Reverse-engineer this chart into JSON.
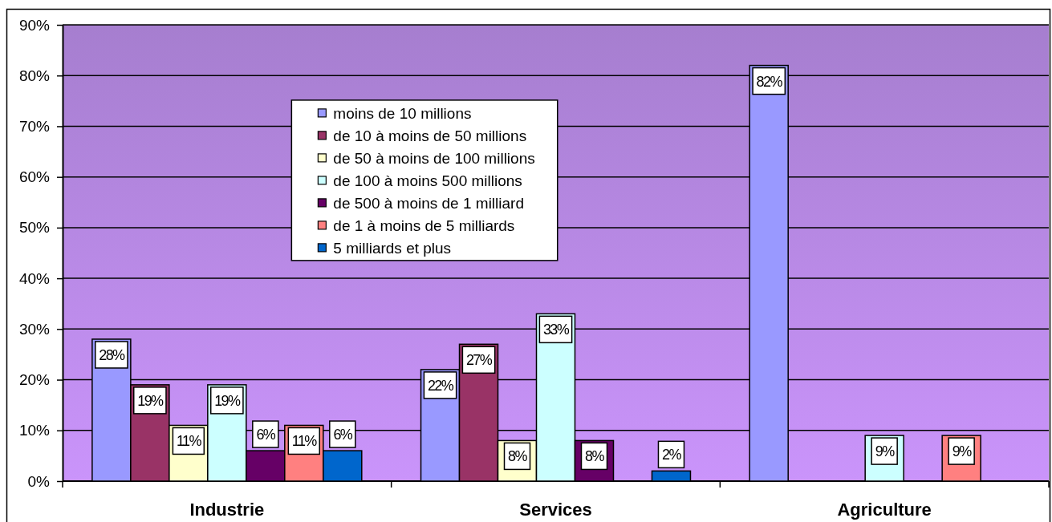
{
  "chart_data": {
    "type": "bar",
    "categories": [
      "Industrie",
      "Services",
      "Agriculture"
    ],
    "series": [
      {
        "name": "moins de 10 millions",
        "color": "#9999ff",
        "values": [
          28,
          22,
          82
        ],
        "value_labels": [
          "28%",
          "22%",
          "82%"
        ]
      },
      {
        "name": "de 10 à moins de 50 millions",
        "color": "#993366",
        "values": [
          19,
          27,
          null
        ],
        "value_labels": [
          "19%",
          "27%",
          null
        ]
      },
      {
        "name": "de 50 à moins de 100 millions",
        "color": "#ffffcc",
        "values": [
          11,
          8,
          null
        ],
        "value_labels": [
          "11%",
          "8%",
          null
        ]
      },
      {
        "name": "de 100 à moins 500 millions",
        "color": "#ccffff",
        "values": [
          19,
          33,
          9
        ],
        "value_labels": [
          "19%",
          "33%",
          "9%"
        ]
      },
      {
        "name": "de 500 à moins de 1 milliard",
        "color": "#660066",
        "values": [
          6,
          8,
          null
        ],
        "value_labels": [
          "6%",
          "8%",
          null
        ]
      },
      {
        "name": "de 1 à moins de 5 milliards",
        "color": "#ff8080",
        "values": [
          11,
          null,
          9
        ],
        "value_labels": [
          "11%",
          null,
          "9%"
        ]
      },
      {
        "name": "5 milliards et plus",
        "color": "#0066cc",
        "values": [
          6,
          2,
          null
        ],
        "value_labels": [
          "6%",
          "2%",
          null
        ]
      }
    ],
    "ylim": [
      0,
      90
    ],
    "yticks": [
      {
        "value": 0,
        "label": "0%"
      },
      {
        "value": 10,
        "label": "10%"
      },
      {
        "value": 20,
        "label": "20%"
      },
      {
        "value": 30,
        "label": "30%"
      },
      {
        "value": 40,
        "label": "40%"
      },
      {
        "value": 50,
        "label": "50%"
      },
      {
        "value": 60,
        "label": "60%"
      },
      {
        "value": 70,
        "label": "70%"
      },
      {
        "value": 80,
        "label": "80%"
      },
      {
        "value": 90,
        "label": "90%"
      }
    ],
    "grid": "y",
    "legend": "top"
  }
}
